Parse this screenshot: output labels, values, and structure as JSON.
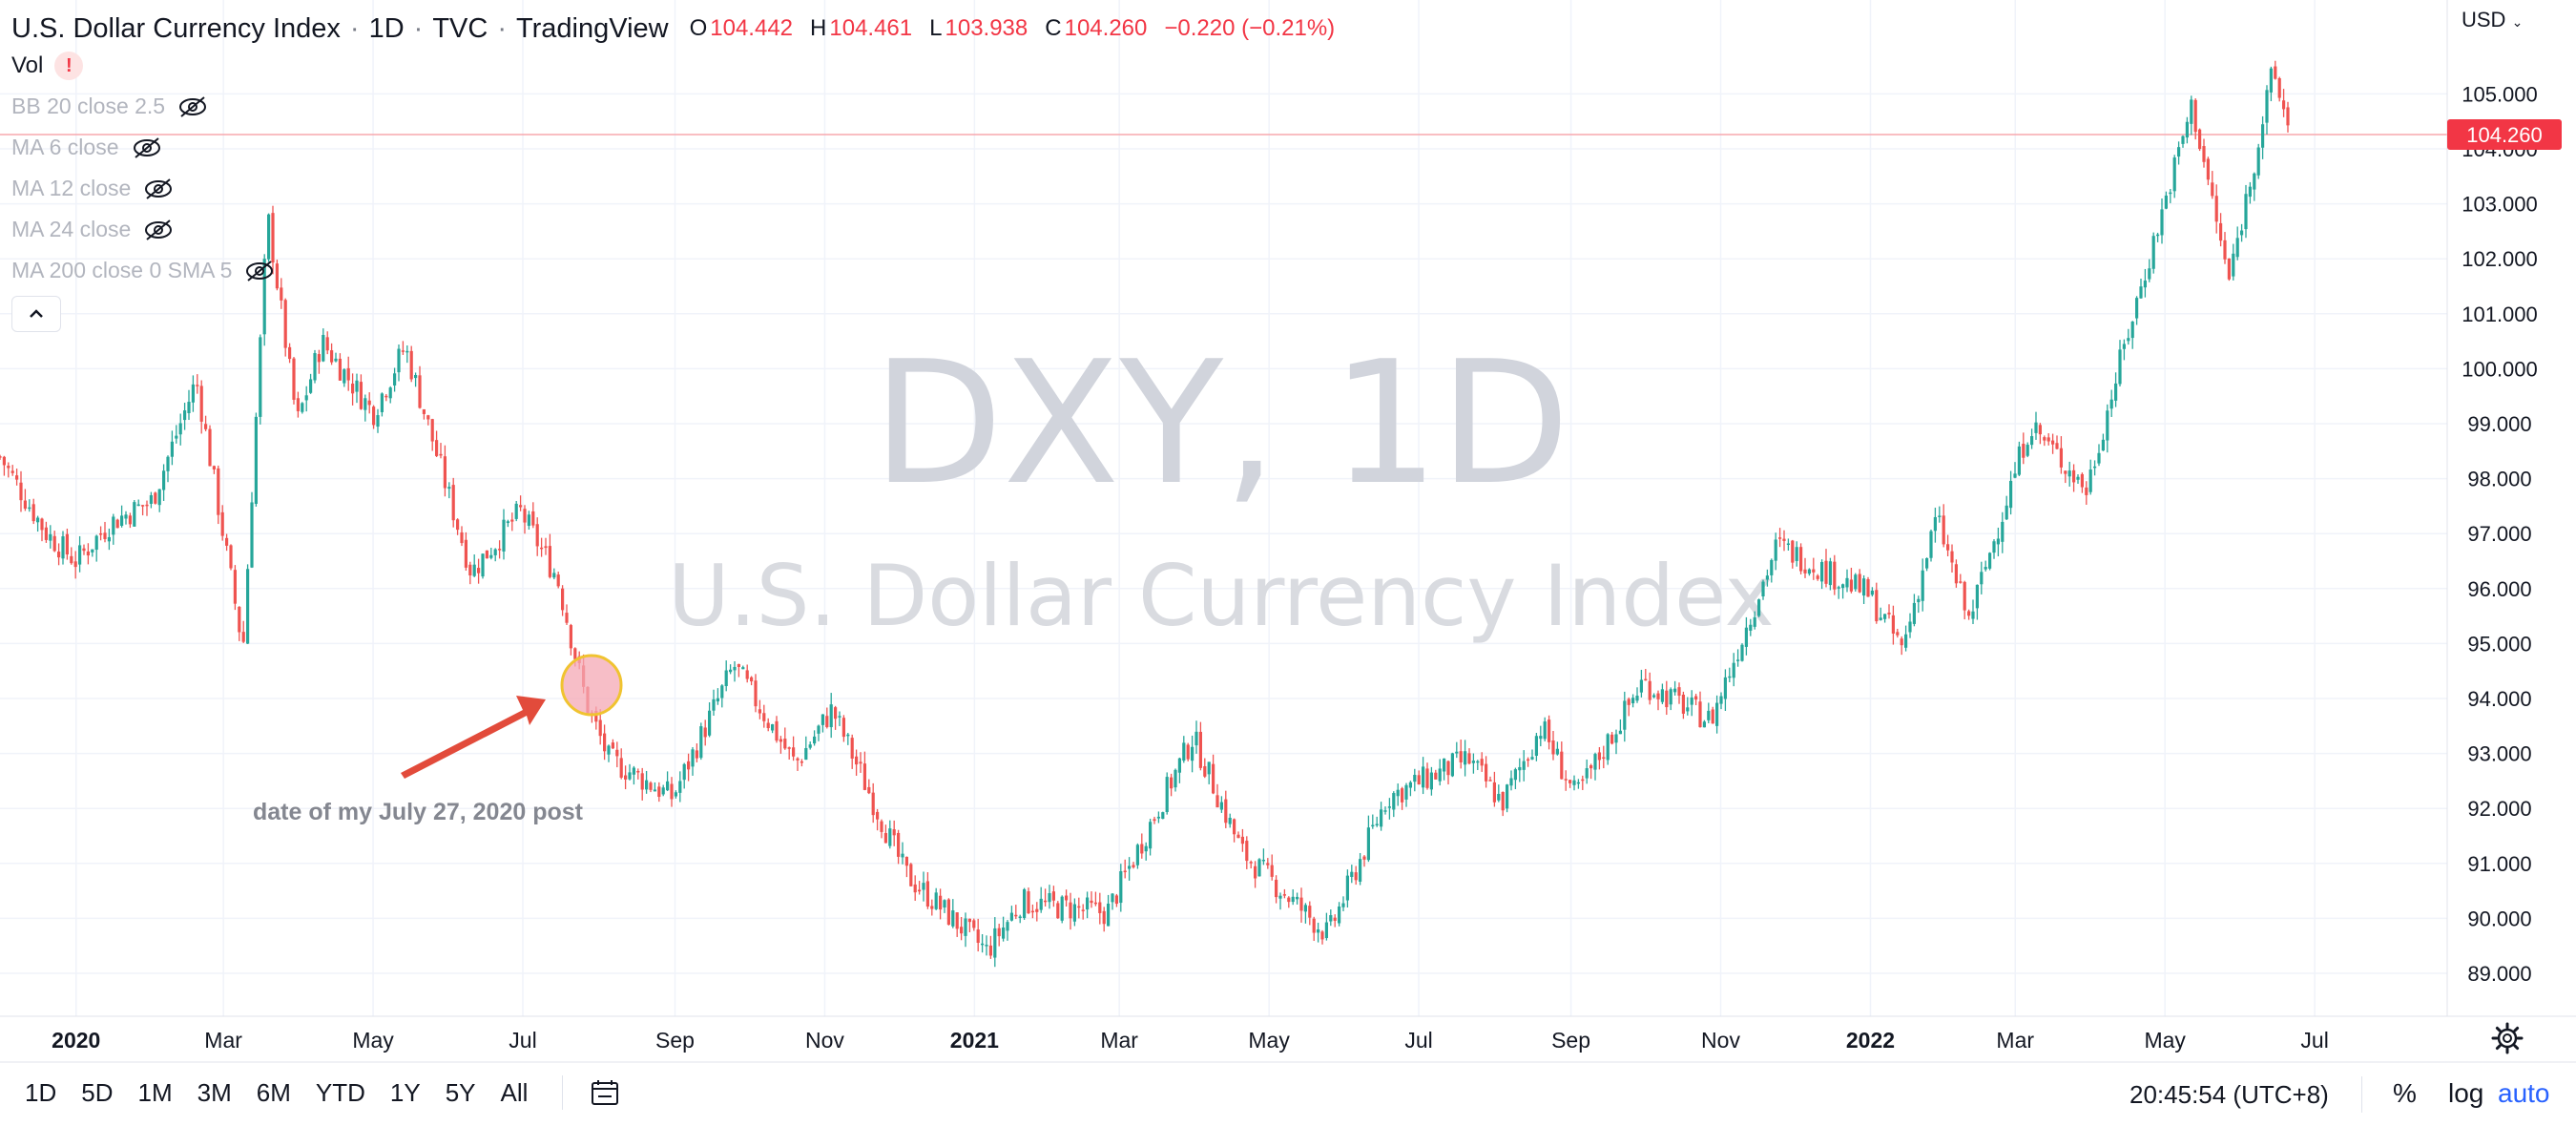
{
  "header": {
    "symbol": "U.S. Dollar Currency Index",
    "interval": "1D",
    "exchange": "TVC",
    "platform": "TradingView",
    "ohlc": [
      {
        "key": "O",
        "value": "104.442"
      },
      {
        "key": "H",
        "value": "104.461"
      },
      {
        "key": "L",
        "value": "103.938"
      },
      {
        "key": "C",
        "value": "104.260"
      }
    ],
    "change": "−0.220 (−0.21%)"
  },
  "legend": {
    "vol": "Vol",
    "vol_warning": "!",
    "indicators": [
      "BB 20 close 2.5",
      "MA 6 close",
      "MA 12 close",
      "MA 24 close",
      "MA 200 close 0 SMA 5"
    ]
  },
  "currency": "USD",
  "watermark": {
    "line1": "DXY, 1D",
    "line2": "U.S. Dollar Currency Index"
  },
  "annotation": {
    "text": "date of my July 27, 2020 post"
  },
  "colors": {
    "up": "#26a69a",
    "down": "#ef5350",
    "price_label_bg": "#f23645",
    "accent": "#2962ff",
    "grid": "#f0f3fa"
  },
  "chart_data": {
    "type": "candlestick",
    "y_ticks": [
      "89.000",
      "90.000",
      "91.000",
      "92.000",
      "93.000",
      "94.000",
      "95.000",
      "96.000",
      "97.000",
      "98.000",
      "99.000",
      "100.000",
      "101.000",
      "102.000",
      "103.000",
      "104.000",
      "105.000"
    ],
    "x_ticks": [
      {
        "label": "2020",
        "bold": true
      },
      {
        "label": "Mar"
      },
      {
        "label": "May"
      },
      {
        "label": "Jul"
      },
      {
        "label": "Sep"
      },
      {
        "label": "Nov"
      },
      {
        "label": "2021",
        "bold": true
      },
      {
        "label": "Mar"
      },
      {
        "label": "May"
      },
      {
        "label": "Jul"
      },
      {
        "label": "Sep"
      },
      {
        "label": "Nov"
      },
      {
        "label": "2022",
        "bold": true
      },
      {
        "label": "Mar"
      },
      {
        "label": "May"
      },
      {
        "label": "Jul"
      }
    ],
    "ylim": [
      88.2,
      106.0
    ],
    "last_price": 104.26,
    "last_price_label": "104.260",
    "grid": true,
    "series": [
      {
        "date": "2019-12-01",
        "value": 98.4
      },
      {
        "date": "2019-12-20",
        "value": 97.0
      },
      {
        "date": "2020-01-01",
        "value": 96.5
      },
      {
        "date": "2020-01-15",
        "value": 97.2
      },
      {
        "date": "2020-02-01",
        "value": 97.6
      },
      {
        "date": "2020-02-19",
        "value": 99.8
      },
      {
        "date": "2020-03-09",
        "value": 94.9
      },
      {
        "date": "2020-03-19",
        "value": 102.8
      },
      {
        "date": "2020-03-31",
        "value": 99.0
      },
      {
        "date": "2020-04-10",
        "value": 100.5
      },
      {
        "date": "2020-05-01",
        "value": 99.2
      },
      {
        "date": "2020-05-14",
        "value": 100.4
      },
      {
        "date": "2020-06-10",
        "value": 96.3
      },
      {
        "date": "2020-06-30",
        "value": 97.4
      },
      {
        "date": "2020-07-15",
        "value": 96.2
      },
      {
        "date": "2020-07-27",
        "value": 93.9
      },
      {
        "date": "2020-08-05",
        "value": 92.9
      },
      {
        "date": "2020-08-31",
        "value": 92.2
      },
      {
        "date": "2020-09-25",
        "value": 94.6
      },
      {
        "date": "2020-10-20",
        "value": 92.8
      },
      {
        "date": "2020-11-04",
        "value": 93.8
      },
      {
        "date": "2020-12-04",
        "value": 90.8
      },
      {
        "date": "2021-01-06",
        "value": 89.4
      },
      {
        "date": "2021-01-20",
        "value": 90.3
      },
      {
        "date": "2021-02-24",
        "value": 90.1
      },
      {
        "date": "2021-03-31",
        "value": 93.3
      },
      {
        "date": "2021-04-20",
        "value": 91.2
      },
      {
        "date": "2021-05-25",
        "value": 89.7
      },
      {
        "date": "2021-06-18",
        "value": 92.2
      },
      {
        "date": "2021-07-21",
        "value": 92.9
      },
      {
        "date": "2021-08-04",
        "value": 92.1
      },
      {
        "date": "2021-08-20",
        "value": 93.5
      },
      {
        "date": "2021-09-03",
        "value": 92.2
      },
      {
        "date": "2021-09-30",
        "value": 94.3
      },
      {
        "date": "2021-10-28",
        "value": 93.6
      },
      {
        "date": "2021-11-24",
        "value": 96.8
      },
      {
        "date": "2021-12-31",
        "value": 95.9
      },
      {
        "date": "2022-01-14",
        "value": 94.9
      },
      {
        "date": "2022-01-28",
        "value": 97.3
      },
      {
        "date": "2022-02-10",
        "value": 95.4
      },
      {
        "date": "2022-03-07",
        "value": 99.0
      },
      {
        "date": "2022-03-30",
        "value": 97.8
      },
      {
        "date": "2022-04-15",
        "value": 100.5
      },
      {
        "date": "2022-05-12",
        "value": 104.8
      },
      {
        "date": "2022-05-27",
        "value": 101.6
      },
      {
        "date": "2022-06-14",
        "value": 105.4
      },
      {
        "date": "2022-06-21",
        "value": 104.3
      }
    ]
  },
  "footer": {
    "timeframes": [
      "1D",
      "5D",
      "1M",
      "3M",
      "6M",
      "YTD",
      "1Y",
      "5Y",
      "All"
    ],
    "clock": "20:45:54 (UTC+8)",
    "percent": "%",
    "log": "log",
    "auto": "auto"
  }
}
